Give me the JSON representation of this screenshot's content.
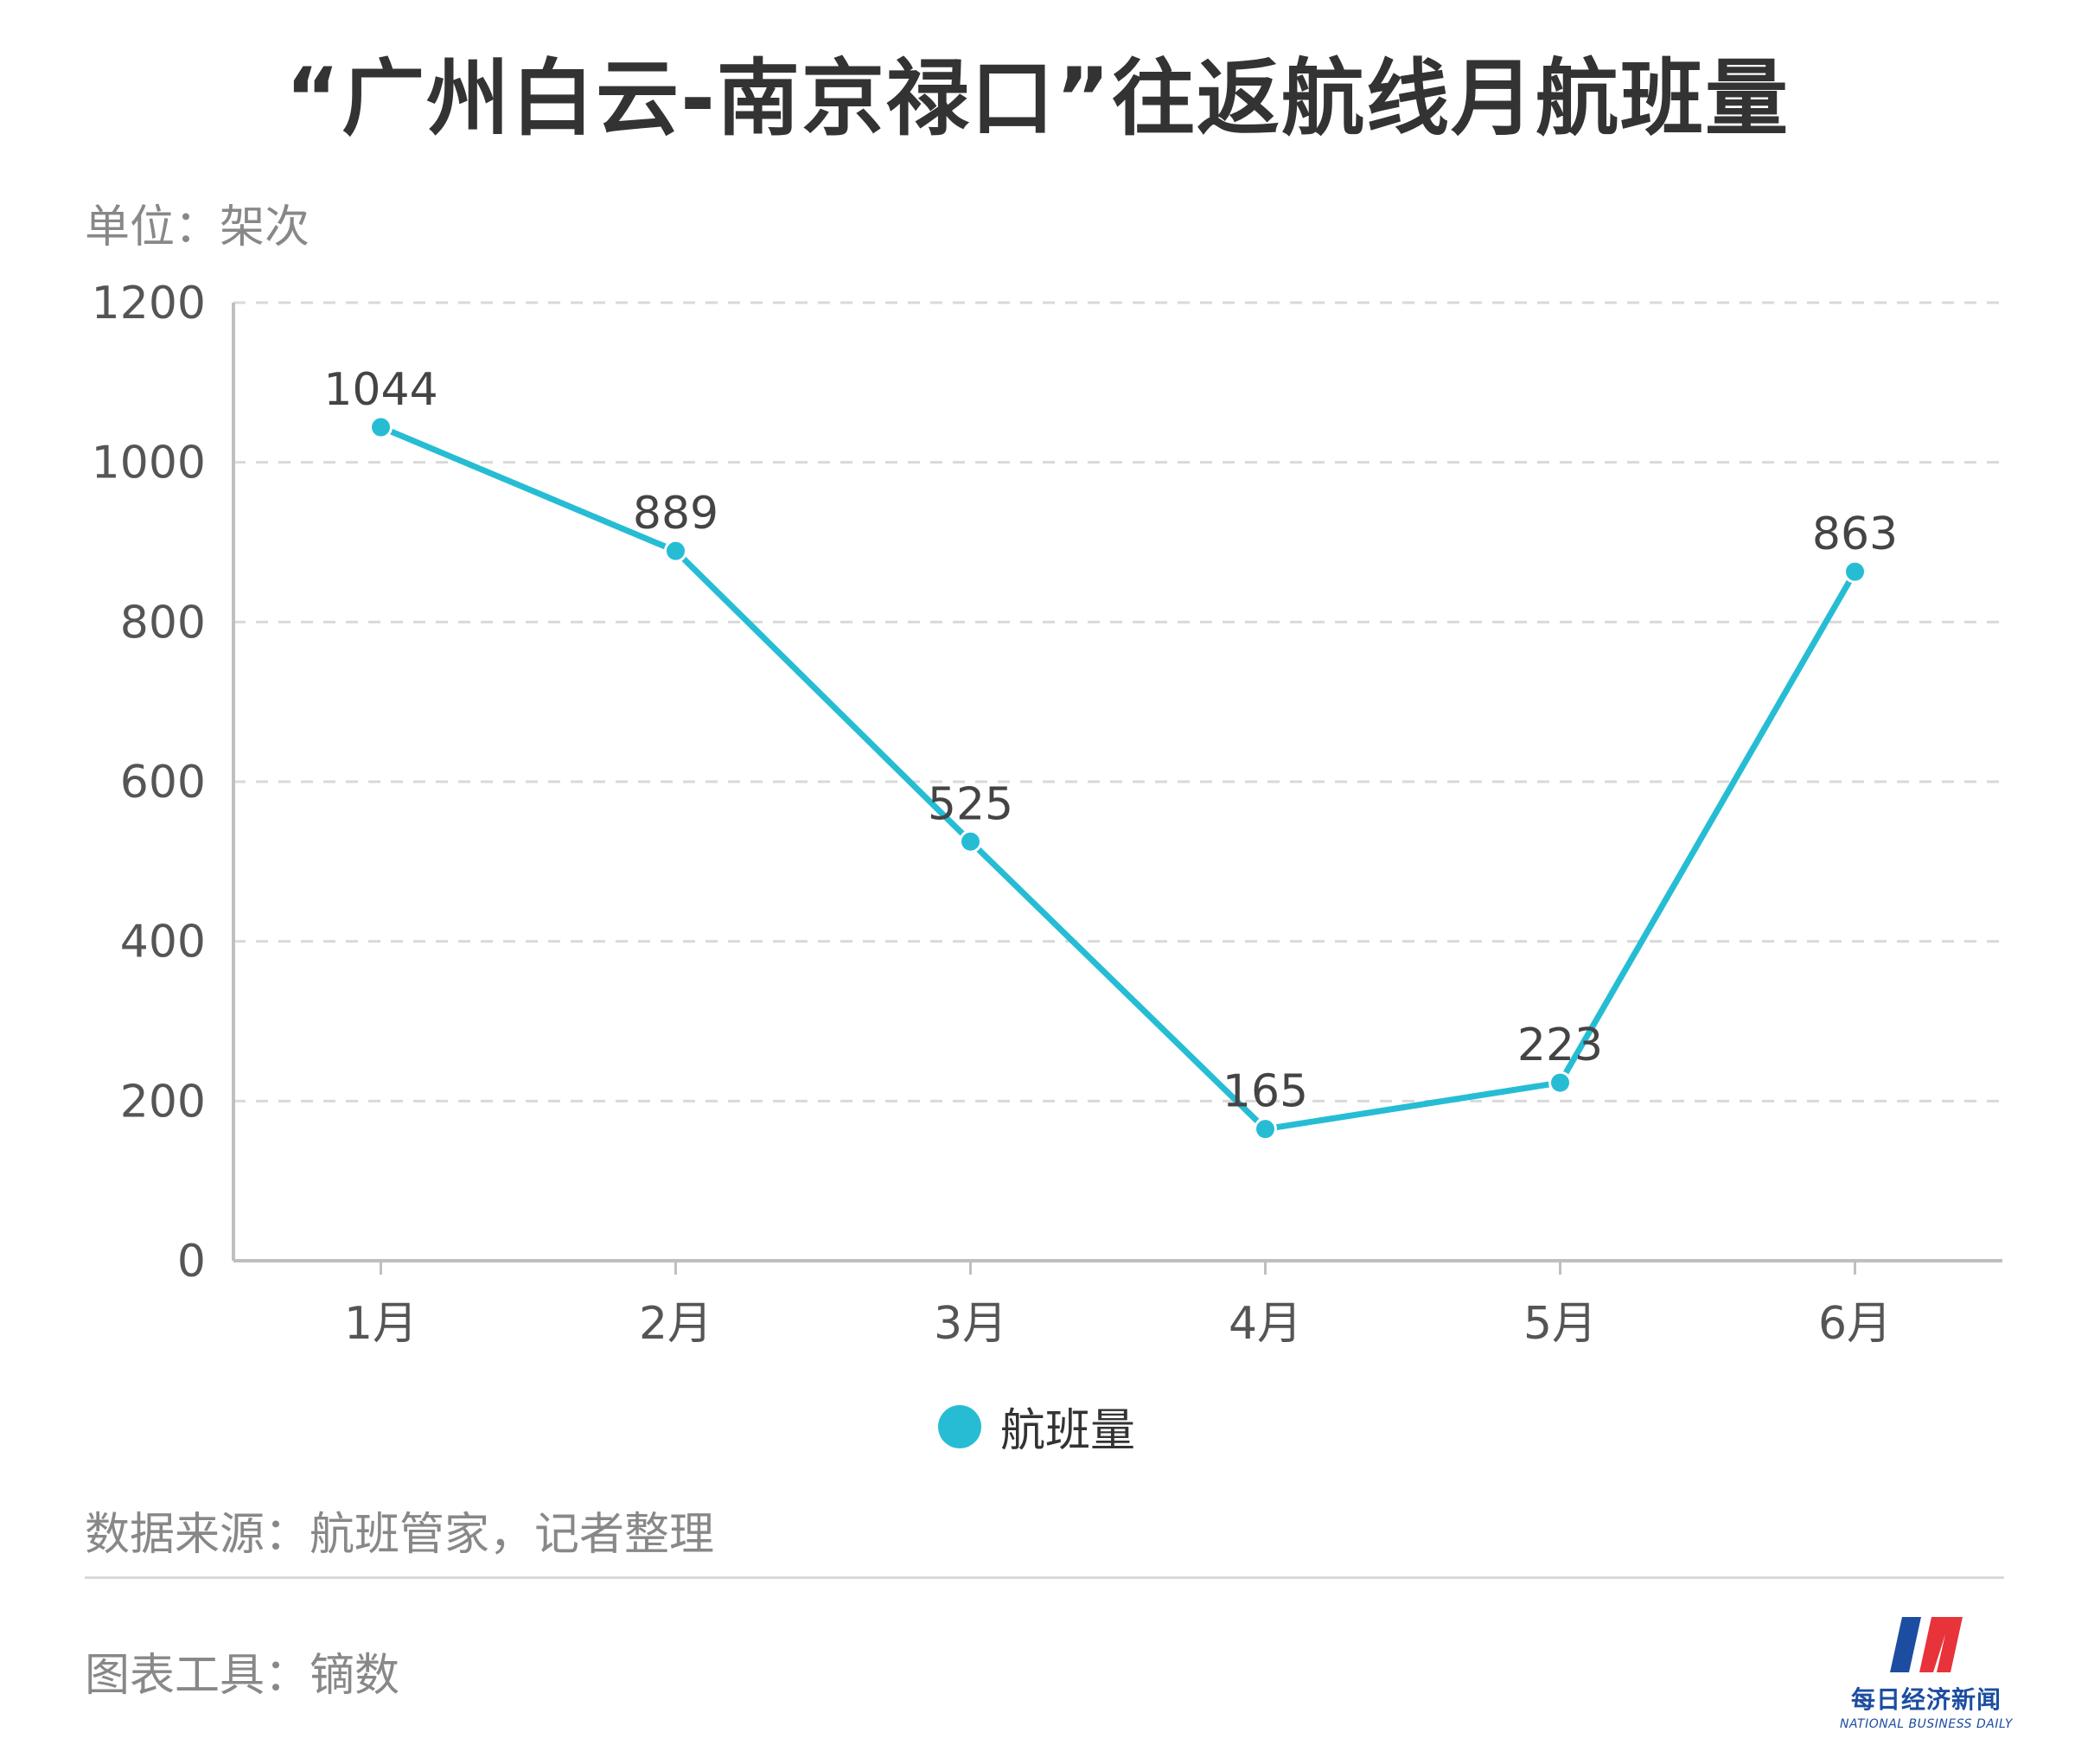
{
  "header": {
    "title": "“广州白云-南京禄口”往返航线月航班量",
    "unit": "单位：架次"
  },
  "footer": {
    "source": "数据来源：航班管家，记者整理",
    "tool": "图表工具：镝数",
    "brand_cn": "每日经济新闻",
    "brand_en": "NATIONAL BUSINESS DAILY"
  },
  "colors": {
    "series": "#26bdd4",
    "axis": "#bfbfbf",
    "grid": "#d9d9d9",
    "tick_text": "#555555",
    "label_text": "#444444",
    "brand_blue": "#1c4da1",
    "brand_red": "#e8333a"
  },
  "icons": [
    "legend-dot-icon",
    "brand-logo-icon"
  ],
  "chart_data": {
    "type": "line",
    "categories": [
      "1月",
      "2月",
      "3月",
      "4月",
      "5月",
      "6月"
    ],
    "series": [
      {
        "name": "航班量",
        "values": [
          1044,
          889,
          525,
          165,
          223,
          863
        ]
      }
    ],
    "ylim": [
      0,
      1200
    ],
    "yticks": [
      0,
      200,
      400,
      600,
      800,
      1000,
      1200
    ],
    "grid": true,
    "legend": "bottom-center",
    "data_labels": true
  }
}
